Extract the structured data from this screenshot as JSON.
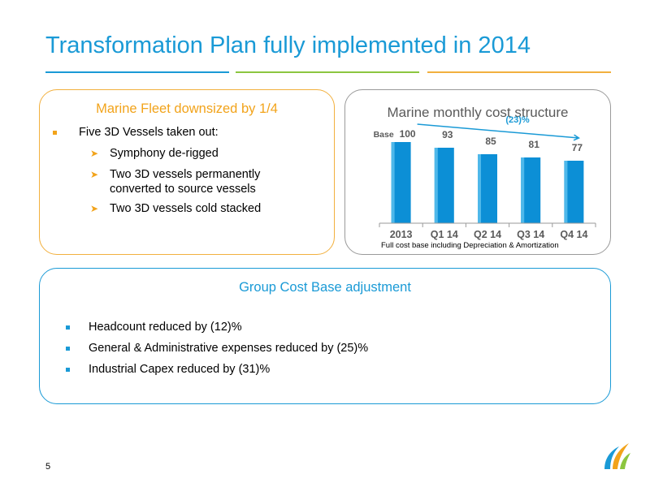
{
  "slide": {
    "title": "Transformation Plan fully implemented in 2014",
    "page_number": "5",
    "colors": {
      "title": "#1a9ad6",
      "orange": "#f2a31a",
      "green": "#8cc63f",
      "bar": "#0c8fd6",
      "gray": "#5a5a5a"
    }
  },
  "fleet": {
    "heading": "Marine Fleet downsized by 1/4",
    "main_bullet": "Five 3D Vessels taken out:",
    "sub_bullets": [
      "Symphony de-rigged",
      "Two 3D vessels permanently",
      "converted to source vessels",
      "Two 3D vessels cold stacked"
    ]
  },
  "chart": {
    "heading": "Marine monthly cost structure",
    "base_label": "Base",
    "change_label": "(23)%",
    "note": "Full cost base including Depreciation & Amortization"
  },
  "chart_data": {
    "type": "bar",
    "title": "Marine monthly cost structure",
    "categories": [
      "2013",
      "Q1 14",
      "Q2 14",
      "Q3 14",
      "Q4 14"
    ],
    "values": [
      100,
      93,
      85,
      81,
      77
    ],
    "ylim": [
      0,
      100
    ],
    "grid": false,
    "legend": "none",
    "annotations": [
      "Base",
      "(23)%",
      "Full cost base including Depreciation & Amortization"
    ]
  },
  "group": {
    "heading": "Group Cost Base adjustment",
    "bullets": [
      "Headcount reduced by (12)%",
      "General & Administrative expenses reduced by (25)%",
      "Industrial Capex reduced by (31)%"
    ]
  },
  "logo": {
    "icon": "company-logo-icon",
    "colors": [
      "#1a9ad6",
      "#f2a31a",
      "#8cc63f"
    ]
  }
}
